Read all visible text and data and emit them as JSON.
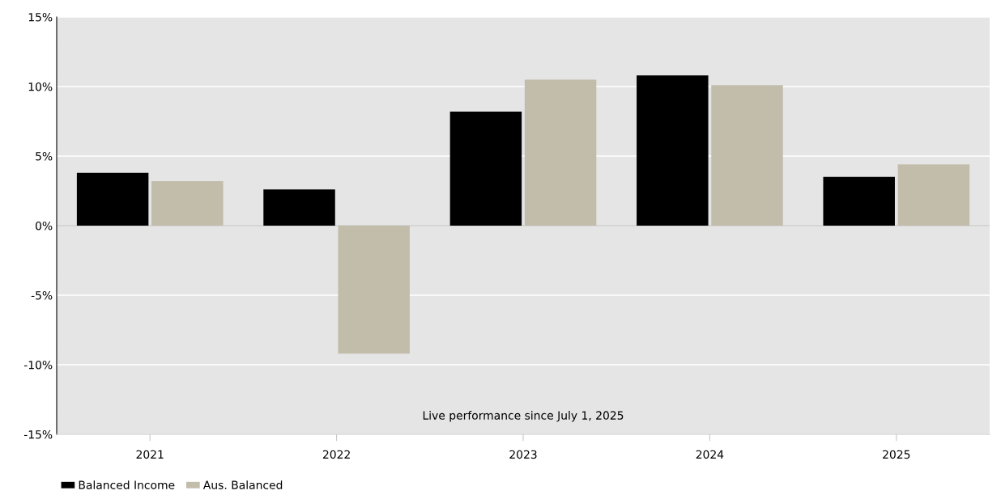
{
  "chart_data": {
    "type": "bar",
    "categories": [
      "2021",
      "2022",
      "2023",
      "2024",
      "2025"
    ],
    "series": [
      {
        "name": "Balanced Income",
        "color": "#000000",
        "values": [
          3.8,
          2.6,
          8.2,
          10.8,
          3.5
        ]
      },
      {
        "name": "Aus. Balanced",
        "color": "#c2bcab",
        "values": [
          3.2,
          -9.2,
          10.5,
          10.1,
          4.4
        ]
      }
    ],
    "ylim": [
      -15,
      15
    ],
    "yticks": [
      {
        "value": -15,
        "label": "-15%"
      },
      {
        "value": -10,
        "label": "-10%"
      },
      {
        "value": -5,
        "label": "-5%"
      },
      {
        "value": 0,
        "label": "0%"
      },
      {
        "value": 5,
        "label": "5%"
      },
      {
        "value": 10,
        "label": "10%"
      },
      {
        "value": 15,
        "label": "15%"
      }
    ],
    "ref_lines": [
      {
        "axis": "y",
        "value": 0,
        "color": "#c8c8c8"
      }
    ],
    "annotations": [
      "Live performance since July 1, 2025"
    ],
    "grid": "y",
    "legend": "bottom left"
  }
}
